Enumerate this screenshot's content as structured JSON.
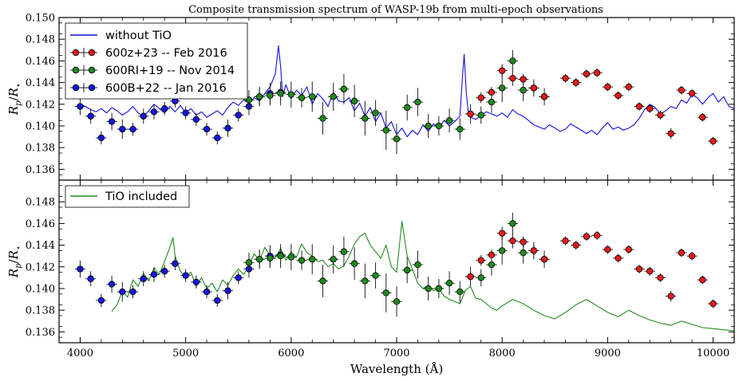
{
  "chart_data": {
    "type": "scatter",
    "title": "Composite transmission spectrum of WASP-19b from multi-epoch observations",
    "xlabel": "Wavelength (Å)",
    "ylabel": "R_p / R_⋆",
    "xlim": [
      3800,
      10200
    ],
    "ylim": [
      0.135,
      0.15
    ],
    "xticks": [
      4000,
      5000,
      6000,
      7000,
      8000,
      9000,
      10000
    ],
    "yticks": [
      0.136,
      0.138,
      0.14,
      0.142,
      0.144,
      0.146,
      0.148,
      0.15
    ],
    "ytick_labels": [
      "0.136",
      "0.138",
      "0.140",
      "0.142",
      "0.144",
      "0.146",
      "0.148",
      "0.150"
    ],
    "colors": {
      "blue_data": "#1515e0",
      "green_data": "#1e8a1e",
      "red_data": "#e61a1a",
      "model_no_tio": "#1010e0",
      "model_tio": "#228b22",
      "errorbar": "#222222"
    },
    "panels": [
      {
        "id": "top",
        "legend_line": {
          "label": "without TiO",
          "color_key": "model_no_tio"
        }
      },
      {
        "id": "bottom",
        "legend_line": {
          "label": "TiO included",
          "color_key": "model_tio"
        }
      }
    ],
    "series": [
      {
        "name": "600z+23 -- Feb 2016",
        "color_key": "red_data",
        "x": [
          7700,
          7800,
          7900,
          8000,
          8100,
          8200,
          8300,
          8400,
          8600,
          8700,
          8800,
          8900,
          9000,
          9100,
          9200,
          9300,
          9400,
          9500,
          9600,
          9700,
          9800,
          9900,
          10000
        ],
        "y": [
          0.1411,
          0.1426,
          0.1431,
          0.1451,
          0.1444,
          0.1443,
          0.1435,
          0.1427,
          0.1444,
          0.144,
          0.1448,
          0.1449,
          0.1436,
          0.1428,
          0.1436,
          0.1418,
          0.1416,
          0.141,
          0.1393,
          0.1433,
          0.143,
          0.1408,
          0.1386
        ],
        "yerr": [
          0.0005,
          0.0005,
          0.0005,
          0.0006,
          0.0007,
          0.0005,
          0.0005,
          0.0004,
          0.0004,
          0.0004,
          0.0004,
          0.0004,
          0.0004,
          0.0004,
          0.0004,
          0.0004,
          0.0004,
          0.0004,
          0.0005,
          0.0004,
          0.0004,
          0.0004,
          0.0004
        ]
      },
      {
        "name": "600RI+19 -- Nov 2014",
        "color_key": "green_data",
        "x": [
          5600,
          5700,
          5800,
          5900,
          6000,
          6100,
          6200,
          6300,
          6400,
          6500,
          6600,
          6700,
          6800,
          6900,
          7000,
          7100,
          7200,
          7300,
          7400,
          7500,
          7600,
          7700,
          7800,
          7900,
          8000,
          8100,
          8200,
          8300,
          8400
        ],
        "y": [
          0.1424,
          0.1427,
          0.1428,
          0.143,
          0.1429,
          0.1426,
          0.1427,
          0.1407,
          0.1427,
          0.1434,
          0.1423,
          0.1407,
          0.1412,
          0.1396,
          0.1388,
          0.1417,
          0.1422,
          0.14,
          0.14,
          0.1405,
          0.1397,
          0.1411,
          0.141,
          0.1422,
          0.1435,
          0.146,
          0.1433,
          0.1435,
          0.1427
        ],
        "yerr": [
          0.0009,
          0.0008,
          0.0009,
          0.0011,
          0.0012,
          0.0009,
          0.0014,
          0.0015,
          0.0013,
          0.0014,
          0.0015,
          0.0016,
          0.0012,
          0.0018,
          0.0014,
          0.0012,
          0.0013,
          0.0011,
          0.0009,
          0.0011,
          0.001,
          0.0009,
          0.0008,
          0.001,
          0.0013,
          0.001,
          0.001,
          0.0008,
          0.0008
        ]
      },
      {
        "name": "600B+22 -- Jan 2016",
        "color_key": "blue_data",
        "x": [
          4000,
          4100,
          4200,
          4300,
          4400,
          4500,
          4600,
          4700,
          4800,
          4900,
          5000,
          5100,
          5200,
          5300,
          5400,
          5500,
          5600,
          5700,
          5800,
          5900
        ],
        "y": [
          0.1418,
          0.1409,
          0.1389,
          0.1404,
          0.1397,
          0.1397,
          0.1409,
          0.1413,
          0.1416,
          0.1423,
          0.1412,
          0.1406,
          0.1397,
          0.1389,
          0.1398,
          0.141,
          0.1418,
          0.1427,
          0.143,
          0.1431
        ],
        "yerr": [
          0.0008,
          0.0007,
          0.0006,
          0.0008,
          0.0009,
          0.0006,
          0.0007,
          0.0007,
          0.0006,
          0.0006,
          0.0006,
          0.0006,
          0.0006,
          0.0006,
          0.0008,
          0.0006,
          0.0008,
          0.0009,
          0.001,
          0.0008
        ]
      }
    ],
    "models": {
      "without_tio": {
        "color_key": "model_no_tio",
        "x": [
          4000,
          4050,
          4100,
          4150,
          4200,
          4250,
          4300,
          4350,
          4400,
          4450,
          4500,
          4550,
          4600,
          4650,
          4700,
          4750,
          4800,
          4850,
          4900,
          4950,
          5000,
          5050,
          5100,
          5150,
          5200,
          5250,
          5300,
          5350,
          5400,
          5450,
          5500,
          5550,
          5600,
          5650,
          5700,
          5750,
          5800,
          5850,
          5880,
          5900,
          5920,
          5950,
          6000,
          6050,
          6100,
          6150,
          6200,
          6250,
          6300,
          6350,
          6400,
          6450,
          6500,
          6550,
          6600,
          6650,
          6700,
          6750,
          6800,
          6850,
          6900,
          6950,
          7000,
          7050,
          7100,
          7150,
          7200,
          7250,
          7300,
          7350,
          7400,
          7450,
          7500,
          7550,
          7600,
          7620,
          7640,
          7660,
          7680,
          7700,
          7750,
          7800,
          7850,
          7900,
          7950,
          8000,
          8050,
          8100,
          8150,
          8200,
          8250,
          8300,
          8350,
          8400,
          8450,
          8500,
          8550,
          8600,
          8650,
          8700,
          8750,
          8800,
          8850,
          8900,
          8950,
          9000,
          9050,
          9100,
          9150,
          9200,
          9250,
          9300,
          9350,
          9400,
          9450,
          9500,
          9550,
          9600,
          9650,
          9700,
          9750,
          9800,
          9850,
          9900,
          9950,
          10000,
          10050,
          10100,
          10150,
          10200
        ],
        "y": [
          0.142,
          0.1418,
          0.1415,
          0.1413,
          0.1416,
          0.1412,
          0.1417,
          0.1414,
          0.141,
          0.1413,
          0.1418,
          0.1412,
          0.1409,
          0.1414,
          0.142,
          0.1416,
          0.1412,
          0.1418,
          0.1413,
          0.1419,
          0.1412,
          0.1416,
          0.141,
          0.1413,
          0.1408,
          0.1411,
          0.1414,
          0.141,
          0.1417,
          0.1422,
          0.1419,
          0.1424,
          0.1421,
          0.1426,
          0.1423,
          0.143,
          0.1436,
          0.1448,
          0.1474,
          0.1455,
          0.1427,
          0.1438,
          0.1425,
          0.1433,
          0.1428,
          0.1436,
          0.142,
          0.143,
          0.1425,
          0.1418,
          0.1431,
          0.1423,
          0.1422,
          0.1426,
          0.1414,
          0.1421,
          0.1409,
          0.1417,
          0.1404,
          0.1412,
          0.1398,
          0.1404,
          0.1392,
          0.1398,
          0.139,
          0.1396,
          0.1392,
          0.1401,
          0.1395,
          0.1402,
          0.1398,
          0.1405,
          0.14,
          0.1404,
          0.1409,
          0.144,
          0.1466,
          0.1432,
          0.1411,
          0.1408,
          0.1406,
          0.141,
          0.1413,
          0.1411,
          0.1409,
          0.1412,
          0.1408,
          0.1415,
          0.1411,
          0.1409,
          0.1405,
          0.1401,
          0.1399,
          0.1397,
          0.1401,
          0.1398,
          0.1395,
          0.1397,
          0.1402,
          0.1399,
          0.1396,
          0.1393,
          0.1396,
          0.1392,
          0.1398,
          0.1403,
          0.1397,
          0.1399,
          0.1396,
          0.1398,
          0.1401,
          0.1407,
          0.1415,
          0.142,
          0.1417,
          0.1411,
          0.1414,
          0.1418,
          0.1416,
          0.1424,
          0.1421,
          0.1429,
          0.1426,
          0.142,
          0.1426,
          0.143,
          0.1422,
          0.1427,
          0.1418,
          0.1416
        ]
      },
      "tio_included": {
        "color_key": "model_tio",
        "x": [
          4300,
          4350,
          4400,
          4450,
          4500,
          4550,
          4600,
          4650,
          4700,
          4750,
          4800,
          4850,
          4880,
          4900,
          4950,
          5000,
          5050,
          5100,
          5150,
          5200,
          5250,
          5300,
          5350,
          5400,
          5450,
          5500,
          5550,
          5600,
          5650,
          5700,
          5750,
          5800,
          5850,
          5900,
          5950,
          6000,
          6050,
          6100,
          6150,
          6200,
          6250,
          6300,
          6350,
          6400,
          6450,
          6500,
          6550,
          6600,
          6650,
          6700,
          6750,
          6800,
          6850,
          6900,
          6950,
          7000,
          7050,
          7100,
          7150,
          7200,
          7250,
          7300,
          7350,
          7400,
          7450,
          7500,
          7550,
          7600,
          7650,
          7700,
          7750,
          7800,
          7850,
          7900,
          7950,
          8000,
          8100,
          8200,
          8300,
          8400,
          8500,
          8600,
          8700,
          8800,
          8900,
          9000,
          9100,
          9200,
          9300,
          9400,
          9500,
          9600,
          9700,
          9800,
          9900,
          10000,
          10100,
          10200
        ],
        "y": [
          0.1379,
          0.1385,
          0.1398,
          0.1392,
          0.1408,
          0.1402,
          0.1414,
          0.1407,
          0.1419,
          0.1413,
          0.1425,
          0.1438,
          0.1447,
          0.143,
          0.1416,
          0.141,
          0.1415,
          0.1402,
          0.141,
          0.14,
          0.1405,
          0.1397,
          0.1408,
          0.1403,
          0.1412,
          0.1418,
          0.1413,
          0.1421,
          0.1432,
          0.1426,
          0.1438,
          0.143,
          0.1428,
          0.1437,
          0.1426,
          0.1434,
          0.1429,
          0.1441,
          0.1433,
          0.143,
          0.1425,
          0.1426,
          0.142,
          0.1423,
          0.1418,
          0.1421,
          0.143,
          0.1441,
          0.1448,
          0.1451,
          0.144,
          0.1434,
          0.1428,
          0.144,
          0.142,
          0.1415,
          0.1462,
          0.143,
          0.1418,
          0.1405,
          0.14,
          0.1403,
          0.1398,
          0.14,
          0.1393,
          0.139,
          0.1388,
          0.1386,
          0.1398,
          0.1402,
          0.1391,
          0.139,
          0.1386,
          0.1382,
          0.138,
          0.1384,
          0.139,
          0.1386,
          0.138,
          0.1375,
          0.1372,
          0.1378,
          0.1385,
          0.139,
          0.1384,
          0.1378,
          0.1374,
          0.138,
          0.1375,
          0.1371,
          0.1368,
          0.1366,
          0.137,
          0.1367,
          0.1364,
          0.1363,
          0.1362,
          0.1361
        ]
      }
    }
  }
}
